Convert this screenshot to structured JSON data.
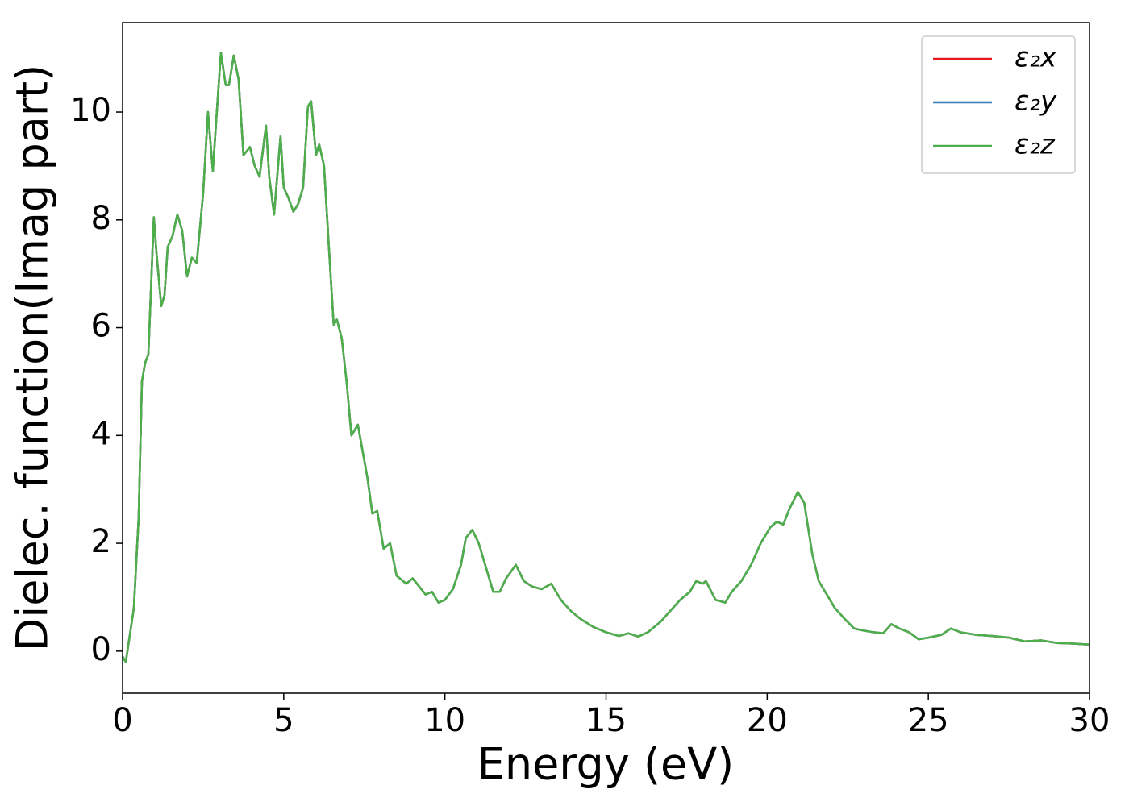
{
  "chart_data": {
    "type": "line",
    "xlabel": "Energy (eV)",
    "ylabel": "Dielec. function(Imag part)",
    "x": [
      0,
      0.1,
      0.2,
      0.35,
      0.5,
      0.6,
      0.7,
      0.8,
      0.9,
      0.97,
      1.05,
      1.2,
      1.3,
      1.4,
      1.55,
      1.7,
      1.85,
      2.0,
      2.15,
      2.3,
      2.5,
      2.65,
      2.8,
      2.9,
      3.05,
      3.2,
      3.3,
      3.45,
      3.6,
      3.75,
      3.95,
      4.1,
      4.25,
      4.45,
      4.55,
      4.7,
      4.9,
      5.0,
      5.15,
      5.3,
      5.45,
      5.6,
      5.75,
      5.85,
      6.0,
      6.1,
      6.25,
      6.4,
      6.55,
      6.65,
      6.8,
      6.95,
      7.1,
      7.3,
      7.45,
      7.6,
      7.75,
      7.9,
      8.1,
      8.3,
      8.5,
      8.8,
      9.0,
      9.2,
      9.4,
      9.6,
      9.8,
      10.0,
      10.25,
      10.5,
      10.65,
      10.85,
      11.05,
      11.3,
      11.5,
      11.7,
      11.9,
      12.2,
      12.45,
      12.7,
      13.0,
      13.3,
      13.6,
      13.9,
      14.2,
      14.6,
      15.0,
      15.4,
      15.7,
      16.0,
      16.3,
      16.7,
      17.0,
      17.3,
      17.6,
      17.8,
      18.0,
      18.1,
      18.4,
      18.7,
      18.9,
      19.2,
      19.5,
      19.8,
      20.1,
      20.3,
      20.5,
      20.7,
      20.95,
      21.15,
      21.4,
      21.6,
      21.8,
      22.1,
      22.4,
      22.7,
      23.0,
      23.3,
      23.6,
      23.85,
      24.1,
      24.4,
      24.7,
      25.0,
      25.4,
      25.7,
      26.0,
      26.5,
      27.0,
      27.5,
      28.0,
      28.5,
      29.0,
      29.5,
      30.0
    ],
    "series": [
      {
        "name": "ε₂x",
        "color": "#e41a1c",
        "values": [
          -0.1,
          -0.2,
          0.2,
          0.8,
          2.5,
          5.0,
          5.35,
          5.5,
          7.0,
          8.05,
          7.4,
          6.4,
          6.6,
          7.5,
          7.7,
          8.1,
          7.8,
          6.95,
          7.3,
          7.2,
          8.5,
          10.0,
          8.9,
          9.8,
          11.1,
          10.5,
          10.5,
          11.05,
          10.6,
          9.2,
          9.35,
          9.0,
          8.8,
          9.75,
          8.8,
          8.1,
          9.55,
          8.6,
          8.4,
          8.15,
          8.3,
          8.6,
          10.1,
          10.2,
          9.2,
          9.4,
          9.0,
          7.5,
          6.05,
          6.15,
          5.8,
          5.0,
          4.0,
          4.2,
          3.7,
          3.2,
          2.55,
          2.6,
          1.9,
          2.0,
          1.4,
          1.25,
          1.35,
          1.2,
          1.05,
          1.1,
          0.9,
          0.95,
          1.15,
          1.6,
          2.1,
          2.25,
          2.0,
          1.5,
          1.1,
          1.1,
          1.35,
          1.6,
          1.3,
          1.2,
          1.15,
          1.25,
          0.95,
          0.75,
          0.6,
          0.45,
          0.35,
          0.28,
          0.33,
          0.27,
          0.35,
          0.55,
          0.75,
          0.95,
          1.1,
          1.3,
          1.25,
          1.3,
          0.95,
          0.9,
          1.1,
          1.3,
          1.6,
          2.0,
          2.3,
          2.4,
          2.35,
          2.65,
          2.95,
          2.75,
          1.8,
          1.3,
          1.1,
          0.8,
          0.6,
          0.42,
          0.38,
          0.35,
          0.33,
          0.5,
          0.42,
          0.35,
          0.22,
          0.25,
          0.3,
          0.42,
          0.35,
          0.3,
          0.28,
          0.25,
          0.18,
          0.2,
          0.15,
          0.14,
          0.12
        ]
      },
      {
        "name": "ε₂y",
        "color": "#377eb8",
        "values": [
          -0.1,
          -0.2,
          0.2,
          0.8,
          2.5,
          5.0,
          5.35,
          5.5,
          7.0,
          8.05,
          7.4,
          6.4,
          6.6,
          7.5,
          7.7,
          8.1,
          7.8,
          6.95,
          7.3,
          7.2,
          8.5,
          10.0,
          8.9,
          9.8,
          11.1,
          10.5,
          10.5,
          11.05,
          10.6,
          9.2,
          9.35,
          9.0,
          8.8,
          9.75,
          8.8,
          8.1,
          9.55,
          8.6,
          8.4,
          8.15,
          8.3,
          8.6,
          10.1,
          10.2,
          9.2,
          9.4,
          9.0,
          7.5,
          6.05,
          6.15,
          5.8,
          5.0,
          4.0,
          4.2,
          3.7,
          3.2,
          2.55,
          2.6,
          1.9,
          2.0,
          1.4,
          1.25,
          1.35,
          1.2,
          1.05,
          1.1,
          0.9,
          0.95,
          1.15,
          1.6,
          2.1,
          2.25,
          2.0,
          1.5,
          1.1,
          1.1,
          1.35,
          1.6,
          1.3,
          1.2,
          1.15,
          1.25,
          0.95,
          0.75,
          0.6,
          0.45,
          0.35,
          0.28,
          0.33,
          0.27,
          0.35,
          0.55,
          0.75,
          0.95,
          1.1,
          1.3,
          1.25,
          1.3,
          0.95,
          0.9,
          1.1,
          1.3,
          1.6,
          2.0,
          2.3,
          2.4,
          2.35,
          2.65,
          2.95,
          2.75,
          1.8,
          1.3,
          1.1,
          0.8,
          0.6,
          0.42,
          0.38,
          0.35,
          0.33,
          0.5,
          0.42,
          0.35,
          0.22,
          0.25,
          0.3,
          0.42,
          0.35,
          0.3,
          0.28,
          0.25,
          0.18,
          0.2,
          0.15,
          0.14,
          0.12
        ]
      },
      {
        "name": "ε₂z",
        "color": "#4daf4a",
        "values": [
          -0.1,
          -0.2,
          0.2,
          0.8,
          2.5,
          5.0,
          5.35,
          5.5,
          7.0,
          8.05,
          7.4,
          6.4,
          6.6,
          7.5,
          7.7,
          8.1,
          7.8,
          6.95,
          7.3,
          7.2,
          8.5,
          10.0,
          8.9,
          9.8,
          11.1,
          10.5,
          10.5,
          11.05,
          10.6,
          9.2,
          9.35,
          9.0,
          8.8,
          9.75,
          8.8,
          8.1,
          9.55,
          8.6,
          8.4,
          8.15,
          8.3,
          8.6,
          10.1,
          10.2,
          9.2,
          9.4,
          9.0,
          7.5,
          6.05,
          6.15,
          5.8,
          5.0,
          4.0,
          4.2,
          3.7,
          3.2,
          2.55,
          2.6,
          1.9,
          2.0,
          1.4,
          1.25,
          1.35,
          1.2,
          1.05,
          1.1,
          0.9,
          0.95,
          1.15,
          1.6,
          2.1,
          2.25,
          2.0,
          1.5,
          1.1,
          1.1,
          1.35,
          1.6,
          1.3,
          1.2,
          1.15,
          1.25,
          0.95,
          0.75,
          0.6,
          0.45,
          0.35,
          0.28,
          0.33,
          0.27,
          0.35,
          0.55,
          0.75,
          0.95,
          1.1,
          1.3,
          1.25,
          1.3,
          0.95,
          0.9,
          1.1,
          1.3,
          1.6,
          2.0,
          2.3,
          2.4,
          2.35,
          2.65,
          2.95,
          2.75,
          1.8,
          1.3,
          1.1,
          0.8,
          0.6,
          0.42,
          0.38,
          0.35,
          0.33,
          0.5,
          0.42,
          0.35,
          0.22,
          0.25,
          0.3,
          0.42,
          0.35,
          0.3,
          0.28,
          0.25,
          0.18,
          0.2,
          0.15,
          0.14,
          0.12
        ]
      }
    ],
    "xlim": [
      0,
      30
    ],
    "xticks": [
      0,
      5,
      10,
      15,
      20,
      25,
      30
    ],
    "ylim": [
      -0.78,
      11.66
    ],
    "yticks": [
      0,
      2,
      4,
      6,
      8,
      10
    ],
    "grid": false,
    "legend": "upper right"
  }
}
